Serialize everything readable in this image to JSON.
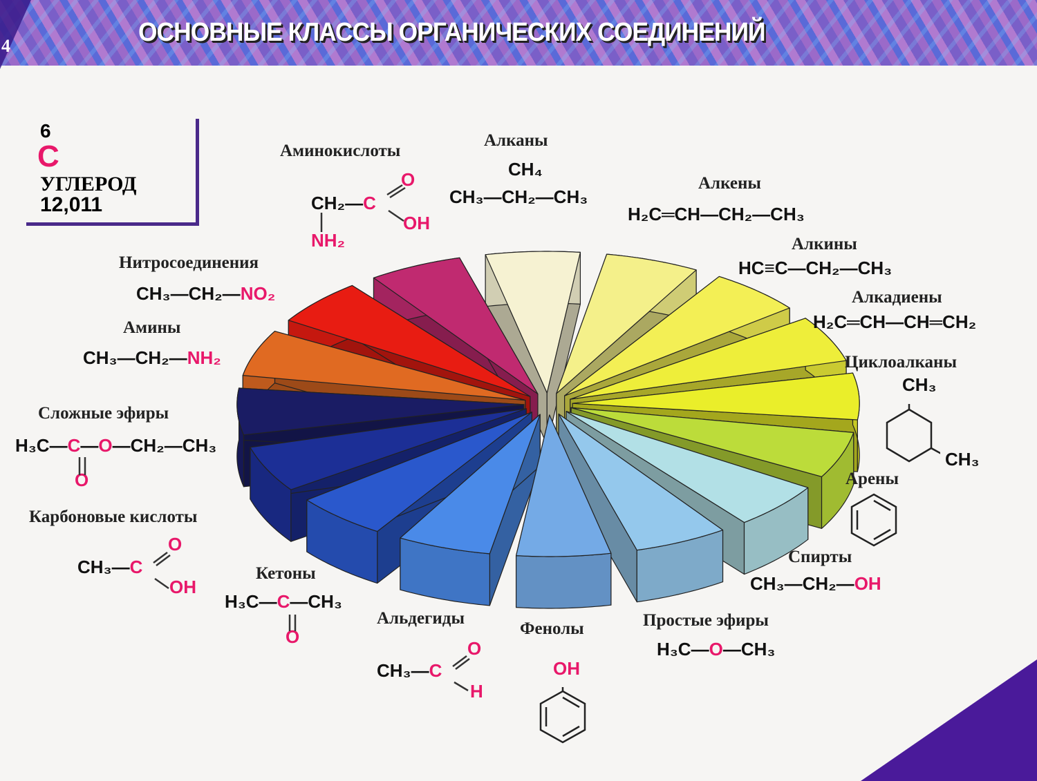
{
  "header": {
    "page_number": "4",
    "title": "ОСНОВНЫЕ КЛАССЫ ОРГАНИЧЕСКИХ СОЕДИНЕНИЙ"
  },
  "element": {
    "number": "6",
    "symbol": "C",
    "name": "УГЛЕРОД",
    "mass": "12,011"
  },
  "colors": {
    "highlight": "#e8186a",
    "frame": "#4a2a8a"
  },
  "classes": [
    {
      "id": "alkanes",
      "name": "Алканы",
      "color": "#f6f2d2",
      "lines": [
        [
          {
            "t": "CH₄"
          }
        ],
        [
          {
            "t": "CH₃—CH₂—CH₃"
          }
        ]
      ]
    },
    {
      "id": "alkenes",
      "name": "Алкены",
      "color": "#f4f08a",
      "lines": [
        [
          {
            "t": "H₂C═CH—CH₂—CH₃"
          }
        ]
      ]
    },
    {
      "id": "alkynes",
      "name": "Алкины",
      "color": "#f3ef55",
      "lines": [
        [
          {
            "t": "HC≡C—CH₂—CH₃"
          }
        ]
      ]
    },
    {
      "id": "alkadienes",
      "name": "Алкадиены",
      "color": "#eeee3a",
      "lines": [
        [
          {
            "t": "H₂C═CH—CH═CH₂"
          }
        ]
      ]
    },
    {
      "id": "cycloalkanes",
      "name": "Циклоалканы",
      "color": "#eaee2a",
      "lines": [
        [
          {
            "t": "CH₃"
          }
        ],
        [
          {
            "t": "CH₃"
          }
        ]
      ]
    },
    {
      "id": "arenes",
      "name": "Арены",
      "color": "#bcdc3a",
      "lines": []
    },
    {
      "id": "alcohols",
      "name": "Спирты",
      "color": "#b2e0e6",
      "lines": [
        [
          {
            "t": "CH₃—CH₂—"
          },
          {
            "t": "OH",
            "hl": true
          }
        ]
      ]
    },
    {
      "id": "ethers",
      "name": "Простые эфиры",
      "color": "#94c8ec",
      "lines": [
        [
          {
            "t": "H₃C—"
          },
          {
            "t": "O",
            "hl": true
          },
          {
            "t": "—CH₃"
          }
        ]
      ]
    },
    {
      "id": "phenols",
      "name": "Фенолы",
      "color": "#74aae6",
      "lines": [
        [
          {
            "t": "OH",
            "hl": true
          }
        ]
      ]
    },
    {
      "id": "aldehydes",
      "name": "Альдегиды",
      "color": "#4a8ae8",
      "lines": [
        [
          {
            "t": "CH₃—"
          },
          {
            "t": "C",
            "hl": true
          }
        ],
        [
          {
            "t": "O",
            "hl": true
          }
        ],
        [
          {
            "t": "H",
            "hl": true
          }
        ]
      ]
    },
    {
      "id": "ketones",
      "name": "Кетоны",
      "color": "#2a58cc",
      "lines": [
        [
          {
            "t": "H₃C—"
          },
          {
            "t": "C",
            "hl": true
          },
          {
            "t": "—CH₃"
          }
        ],
        [
          {
            "t": "O",
            "hl": true
          }
        ]
      ]
    },
    {
      "id": "carboxylic-acids",
      "name": "Карбоновые кислоты",
      "color": "#1c2f96",
      "lines": [
        [
          {
            "t": "CH₃—"
          },
          {
            "t": "C",
            "hl": true
          }
        ],
        [
          {
            "t": "O",
            "hl": true
          }
        ],
        [
          {
            "t": "OH",
            "hl": true
          }
        ]
      ]
    },
    {
      "id": "esters",
      "name": "Сложные эфиры",
      "color": "#1a1c64",
      "lines": [
        [
          {
            "t": "H₃C—"
          },
          {
            "t": "C",
            "hl": true
          },
          {
            "t": "—"
          },
          {
            "t": "O",
            "hl": true
          },
          {
            "t": "—CH₂—CH₃"
          }
        ],
        [
          {
            "t": "O",
            "hl": true
          }
        ]
      ]
    },
    {
      "id": "amines",
      "name": "Амины",
      "color": "#e06a22",
      "lines": [
        [
          {
            "t": "CH₃—CH₂—"
          },
          {
            "t": "NH₂",
            "hl": true
          }
        ]
      ]
    },
    {
      "id": "nitro",
      "name": "Нитросоединения",
      "color": "#e81c12",
      "lines": [
        [
          {
            "t": "CH₃—CH₂—"
          },
          {
            "t": "NO₂",
            "hl": true
          }
        ]
      ]
    },
    {
      "id": "amino-acids",
      "name": "Аминокислоты",
      "color": "#c02a70",
      "lines": [
        [
          {
            "t": "CH₂—"
          },
          {
            "t": "C",
            "hl": true
          }
        ],
        [
          {
            "t": "O",
            "hl": true
          }
        ],
        [
          {
            "t": "OH",
            "hl": true
          }
        ],
        [
          {
            "t": "NH₂",
            "hl": true
          }
        ]
      ]
    }
  ]
}
